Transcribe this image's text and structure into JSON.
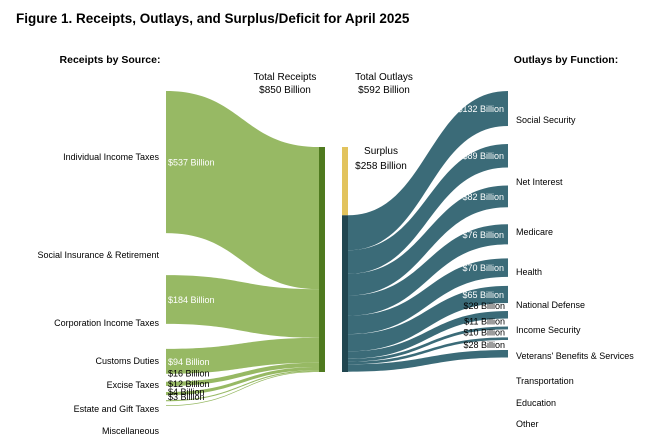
{
  "figure": {
    "title": "Figure 1. Receipts, Outlays, and Surplus/Deficit for April 2025"
  },
  "chart_data": {
    "type": "sankey",
    "units": "Billion",
    "receipts_heading": "Receipts by Source:",
    "outlays_heading": "Outlays by Function:",
    "total_receipts": {
      "label": "Total Receipts",
      "value_text": "$850 Billion",
      "value": 850
    },
    "total_outlays": {
      "label": "Total Outlays",
      "value_text": "$592 Billion",
      "value": 592
    },
    "surplus": {
      "label": "Surplus",
      "value_text": "$258 Billion",
      "value": 258
    },
    "receipts": [
      {
        "name": "Individual Income Taxes",
        "value": 537,
        "value_text": "$537 Billion"
      },
      {
        "name": "Social Insurance & Retirement",
        "value": 184,
        "value_text": "$184 Billion"
      },
      {
        "name": "Corporation Income Taxes",
        "value": 94,
        "value_text": "$94 Billion"
      },
      {
        "name": "Customs Duties",
        "value": 16,
        "value_text": "$16 Billion"
      },
      {
        "name": "Excise Taxes",
        "value": 12,
        "value_text": "$12 Billion"
      },
      {
        "name": "Estate and Gift Taxes",
        "value": 4,
        "value_text": "$4 Billion"
      },
      {
        "name": "Miscellaneous",
        "value": 3,
        "value_text": "$3 Billion"
      }
    ],
    "outlays": [
      {
        "name": "Social Security",
        "value": 132,
        "value_text": "$132 Billion"
      },
      {
        "name": "Net Interest",
        "value": 89,
        "value_text": "$89 Billion"
      },
      {
        "name": "Medicare",
        "value": 82,
        "value_text": "$82 Billion"
      },
      {
        "name": "Health",
        "value": 76,
        "value_text": "$76 Billion"
      },
      {
        "name": "National Defense",
        "value": 70,
        "value_text": "$70 Billion"
      },
      {
        "name": "Income Security",
        "value": 65,
        "value_text": "$65 Billion"
      },
      {
        "name": "Veterans' Benefits & Services",
        "value": 28,
        "value_text": "$28 Billion"
      },
      {
        "name": "Transportation",
        "value": 11,
        "value_text": "$11 Billion"
      },
      {
        "name": "Education",
        "value": 10,
        "value_text": "$10 Billion"
      },
      {
        "name": "Other",
        "value": 28,
        "value_text": "$28 Billion"
      }
    ],
    "colors": {
      "receipts": "#97b964",
      "receipts_bar": "#4f7a1f",
      "outlays": "#3b6b78",
      "outlays_bar": "#214650",
      "surplus": "#e2c35d"
    }
  }
}
